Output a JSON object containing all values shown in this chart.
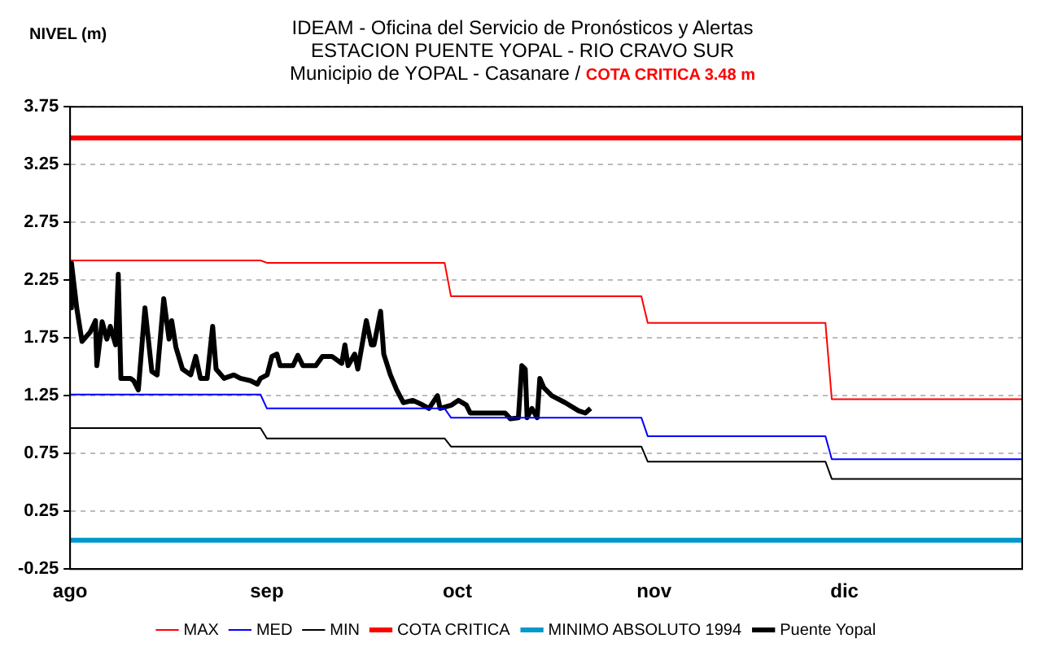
{
  "chart_data": {
    "type": "line",
    "title": "IDEAM - Oficina del Servicio de Pronósticos y Alertas\nESTACION PUENTE YOPAL - RIO CRAVO SUR",
    "subtitle": "Municipio de YOPAL - Casanare /",
    "annotations": [
      "COTA CRITICA 3.48 m"
    ],
    "ylabel": "NIVEL (m)",
    "xlim": [
      "--08-01",
      "--12-29"
    ],
    "xticks": [
      {
        "value": "--08-01",
        "label": "ago"
      },
      {
        "value": "--09-01",
        "label": "sep"
      },
      {
        "value": "--10-01",
        "label": "oct"
      },
      {
        "value": "--11-01",
        "label": "nov"
      },
      {
        "value": "--12-01",
        "label": "dic"
      }
    ],
    "ylim": [
      -0.25,
      3.75
    ],
    "yticks": [
      -0.25,
      0.25,
      0.75,
      1.25,
      1.75,
      2.25,
      2.75,
      3.25,
      3.75
    ],
    "grid": "y",
    "legend": "bottom",
    "marker": "none",
    "line_style": "solid",
    "series": [
      {
        "name": "MAX",
        "color": "#ff0000",
        "x": [
          "--08-01",
          "--08-31",
          "--09-01",
          "--09-29",
          "--09-30",
          "--10-30",
          "--10-31",
          "--11-28",
          "--11-29",
          "--12-29"
        ],
        "values": [
          2.42,
          2.42,
          2.4,
          2.4,
          2.11,
          2.11,
          1.88,
          1.88,
          1.22,
          1.22
        ]
      },
      {
        "name": "MED",
        "color": "#0000ff",
        "x": [
          "--08-01",
          "--08-31",
          "--09-01",
          "--09-29",
          "--09-30",
          "--10-30",
          "--10-31",
          "--11-28",
          "--11-29",
          "--12-29"
        ],
        "values": [
          1.26,
          1.26,
          1.14,
          1.14,
          1.06,
          1.06,
          0.9,
          0.9,
          0.7,
          0.7
        ]
      },
      {
        "name": "MIN",
        "color": "#000000",
        "x": [
          "--08-01",
          "--08-31",
          "--09-01",
          "--09-29",
          "--09-30",
          "--10-30",
          "--10-31",
          "--11-28",
          "--11-29",
          "--12-29"
        ],
        "values": [
          0.97,
          0.97,
          0.88,
          0.88,
          0.81,
          0.81,
          0.68,
          0.68,
          0.53,
          0.53
        ]
      },
      {
        "name": "COTA CRITICA",
        "color": "#ff0000",
        "x": [
          "--08-01",
          "--12-29"
        ],
        "values": [
          3.48,
          3.48
        ]
      },
      {
        "name": "MINIMO ABSOLUTO 1994",
        "color": "#0099cc",
        "x": [
          "--08-01",
          "--12-29"
        ],
        "values": [
          0.0,
          0.0
        ]
      },
      {
        "name": "Puente Yopal",
        "color": "#000000",
        "x": [
          "--08-01T00:00",
          "--08-01T05:00",
          "--08-02T01:00",
          "--08-02T21:00",
          "--08-04T04:00",
          "--08-05T00:00",
          "--08-05T05:00",
          "--08-06T01:00",
          "--08-06T19:00",
          "--08-07T08:00",
          "--08-08T04:00",
          "--08-08T14:00",
          "--08-09T00:00",
          "--08-10T12:00",
          "--08-11T00:00",
          "--08-11T18:00",
          "--08-12T19:00",
          "--08-13T21:00",
          "--08-14T17:00",
          "--08-15T18:00",
          "--08-16T14:00",
          "--08-17T00:00",
          "--08-17T16:00",
          "--08-18T17:00",
          "--08-20T00:00",
          "--08-20T19:00",
          "--08-21T13:00",
          "--08-22T14:00",
          "--08-23T11:00",
          "--08-24T00:00",
          "--08-25T06:00",
          "--08-26T19:00",
          "--08-27T20:00",
          "--08-29T10:00",
          "--08-30T12:00",
          "--08-31T00:00",
          "--09-01T01:00",
          "--09-01T19:00",
          "--09-02T14:00",
          "--09-03T02:00",
          "--09-05T03:00",
          "--09-05T21:00",
          "--09-06T16:00",
          "--09-08T17:00",
          "--09-09T18:00",
          "--09-11T06:00",
          "--09-12T19:00",
          "--09-13T07:00",
          "--09-13T19:00",
          "--09-14T20:00",
          "--09-15T08:00",
          "--09-16T16:00",
          "--09-17T11:00",
          "--09-17T21:00",
          "--09-18T22:00",
          "--09-19T10:00",
          "--09-20T11:00",
          "--09-21T11:00",
          "--09-22T12:00",
          "--09-24T00:00",
          "--09-25T13:00",
          "--09-26T13:00",
          "--09-27T21:00",
          "--09-28T07:00",
          "--09-30T03:00",
          "--10-01T04:00",
          "--10-02T10:00",
          "--10-03T01:00",
          "--10-05T09:00",
          "--10-08T13:00",
          "--10-09T09:00",
          "--10-10T15:00",
          "--10-11T04:00",
          "--10-11T17:00",
          "--10-12T00:00",
          "--10-12T18:00",
          "--10-13T14:00",
          "--10-14T00:00",
          "--10-14T15:00",
          "--10-15T21:00",
          "--10-18T00:00",
          "--10-20T02:00",
          "--10-21T04:00",
          "--10-22T00:00"
        ],
        "values": [
          2.01,
          2.4,
          2.01,
          1.72,
          1.8,
          1.9,
          1.51,
          1.89,
          1.74,
          1.85,
          1.69,
          2.3,
          1.4,
          1.4,
          1.38,
          1.3,
          2.01,
          1.46,
          1.43,
          2.09,
          1.74,
          1.9,
          1.67,
          1.48,
          1.43,
          1.59,
          1.4,
          1.4,
          1.85,
          1.48,
          1.4,
          1.43,
          1.4,
          1.38,
          1.35,
          1.4,
          1.43,
          1.59,
          1.61,
          1.51,
          1.51,
          1.6,
          1.51,
          1.51,
          1.59,
          1.59,
          1.53,
          1.69,
          1.51,
          1.61,
          1.48,
          1.9,
          1.69,
          1.69,
          1.98,
          1.61,
          1.43,
          1.3,
          1.19,
          1.21,
          1.17,
          1.14,
          1.25,
          1.14,
          1.17,
          1.21,
          1.17,
          1.1,
          1.1,
          1.1,
          1.05,
          1.06,
          1.51,
          1.48,
          1.06,
          1.14,
          1.06,
          1.4,
          1.32,
          1.25,
          1.19,
          1.12,
          1.1,
          1.14
        ]
      }
    ]
  }
}
